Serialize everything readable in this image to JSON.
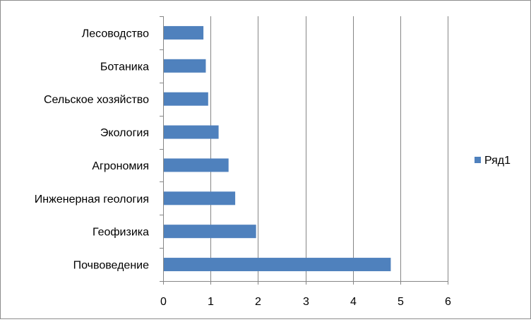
{
  "chart_data": {
    "type": "bar",
    "orientation": "horizontal",
    "categories": [
      "Лесоводство",
      "Ботаника",
      "Сельское хозяйство",
      "Экология",
      "Агрономия",
      "Инженерная геология",
      "Геофизика",
      "Почвоведение"
    ],
    "series": [
      {
        "name": "Ряд1",
        "values": [
          0.85,
          0.9,
          0.95,
          1.17,
          1.38,
          1.52,
          1.96,
          4.8
        ]
      }
    ],
    "xlim": [
      0,
      6
    ],
    "xticks": [
      "0",
      "1",
      "2",
      "3",
      "4",
      "5",
      "6"
    ],
    "grid": "vertical major gridlines",
    "legend_position": "right",
    "colors": {
      "bar": "#4f81bd",
      "grid": "#868686",
      "axis": "#868686"
    }
  }
}
